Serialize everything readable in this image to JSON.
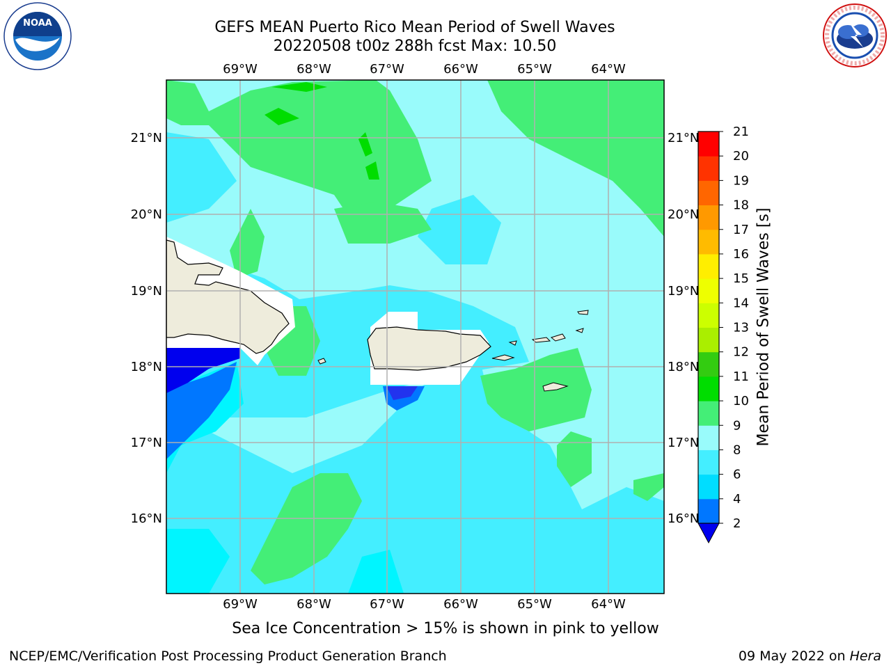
{
  "title": {
    "line1": "GEFS MEAN Puerto Rico Mean Period of Swell Waves",
    "line2": "20220508 t00z 288h fcst   Max: 10.50"
  },
  "logos": {
    "left": {
      "icon": "noaa-logo",
      "text": "NOAA",
      "ring_text": "NATIONAL OCEANIC AND ATMOSPHERIC ADMINISTRATION · U.S. DEPARTMENT OF COMMERCE"
    },
    "right": {
      "icon": "nws-logo",
      "ring_text": "NATIONAL WEATHER SERVICE"
    }
  },
  "map": {
    "projection": "cylindrical",
    "lon_range": [
      -70.0,
      -63.25
    ],
    "lat_range": [
      15.0,
      21.75
    ],
    "gridline_color": "#b0b0b0",
    "land_color": "#eeecdc",
    "lon_ticks": [
      "69°W",
      "68°W",
      "67°W",
      "66°W",
      "65°W",
      "64°W"
    ],
    "lat_ticks": [
      "16°N",
      "17°N",
      "18°N",
      "19°N",
      "20°N",
      "21°N"
    ],
    "background_level": "6-8",
    "masked_color": "#ffffff"
  },
  "colorbar": {
    "label": "Mean Period of Swell Waves [s]",
    "ticks": [
      "2",
      "4",
      "6",
      "8",
      "9",
      "10",
      "11",
      "12",
      "13",
      "14",
      "15",
      "16",
      "17",
      "18",
      "19",
      "20",
      "21"
    ],
    "bins": [
      {
        "from": 2,
        "to": 4,
        "color": "#0077ff"
      },
      {
        "from": 4,
        "to": 6,
        "color": "#00ddff"
      },
      {
        "from": 6,
        "to": 8,
        "color": "#44eeff"
      },
      {
        "from": 8,
        "to": 9,
        "color": "#99fbfb"
      },
      {
        "from": 9,
        "to": 10,
        "color": "#44ee77"
      },
      {
        "from": 10,
        "to": 11,
        "color": "#00dd00"
      },
      {
        "from": 11,
        "to": 12,
        "color": "#33cc11"
      },
      {
        "from": 12,
        "to": 13,
        "color": "#aaee00"
      },
      {
        "from": 13,
        "to": 14,
        "color": "#ccff00"
      },
      {
        "from": 14,
        "to": 15,
        "color": "#eeff00"
      },
      {
        "from": 15,
        "to": 16,
        "color": "#ffee00"
      },
      {
        "from": 16,
        "to": 17,
        "color": "#ffbb00"
      },
      {
        "from": 17,
        "to": 18,
        "color": "#ff9900"
      },
      {
        "from": 18,
        "to": 19,
        "color": "#ff6600"
      },
      {
        "from": 19,
        "to": 20,
        "color": "#ff3300"
      },
      {
        "from": 20,
        "to": 21,
        "color": "#ff0000"
      }
    ],
    "under_color": "#0000ee",
    "extend": "min"
  },
  "footer": {
    "ice_note": "Sea Ice Concentration > 15% is shown in pink to yellow",
    "left": "NCEP/EMC/Verification Post Processing Product Generation Branch",
    "date": "09 May 2022 on",
    "system": "Hera"
  }
}
